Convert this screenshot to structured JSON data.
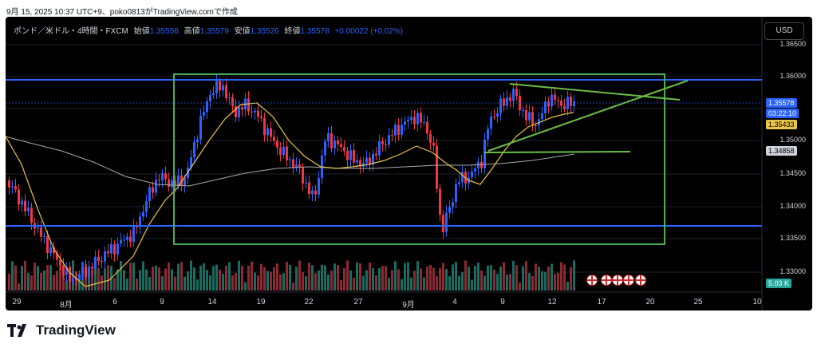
{
  "header": {
    "snapshot_info": "9月 15, 2025 10:37 UTC+9、poko0813がTradingView.comで作成"
  },
  "legend": {
    "symbol": "ポンド／米ドル・4時間・FXCM",
    "open_label": "始値",
    "open": "1.35556",
    "high_label": "高値",
    "high": "1.35579",
    "low_label": "安値",
    "low": "1.35526",
    "close_label": "終値",
    "close": "1.35578",
    "change": "+0.00022 (+0.02%)"
  },
  "currency_button": "USD",
  "price_axis": [
    "1.36500",
    "1.36000",
    "1.35500",
    "1.35000",
    "1.34500",
    "1.34000",
    "1.33500",
    "1.33000"
  ],
  "price_tags": {
    "last_price": "1.35578",
    "countdown": "03:22:10",
    "ma_fast": "1.35433",
    "ma_slow": "1.34858",
    "volume": "5.03 K"
  },
  "time_axis": [
    "29",
    "8月",
    "6",
    "9",
    "14",
    "19",
    "22",
    "27",
    "9月",
    "4",
    "9",
    "12",
    "17",
    "20",
    "25",
    "10"
  ],
  "colors": {
    "bull": "#2962ff",
    "bear": "#f23645",
    "ma_fast": "#e8c547",
    "ma_slow": "#a9a9a9",
    "box": "#4caf50",
    "level": "#2962ff"
  },
  "events_icon": "uk-flag-icon",
  "brand": {
    "name": "TradingView"
  }
}
